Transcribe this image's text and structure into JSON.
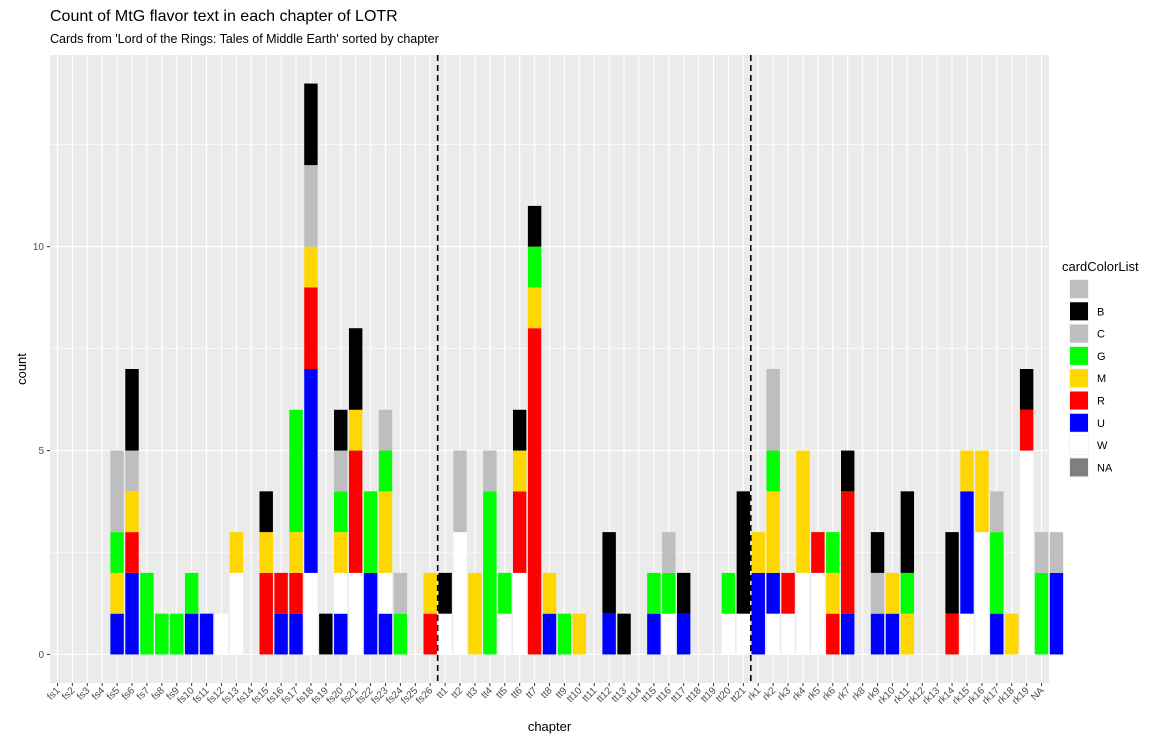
{
  "chart_data": {
    "type": "bar",
    "stacked": true,
    "title": "Count of MtG flavor text in each chapter of LOTR",
    "subtitle": "Cards from 'Lord of the Rings: Tales of Middle Earth' sorted by chapter",
    "xlabel": "chapter",
    "ylabel": "count",
    "ylim": [
      -0.7,
      14.7
    ],
    "yticks": [
      0,
      5,
      10
    ],
    "grid": true,
    "vlines": [
      "fs26|tt1",
      "tt21|rk1"
    ],
    "legend": {
      "title": "cardColorList",
      "position": "right",
      "entries": [
        {
          "label": "",
          "color": "#bebebe"
        },
        {
          "label": "B",
          "color": "#000000"
        },
        {
          "label": "C",
          "color": "#bebebe"
        },
        {
          "label": "G",
          "color": "#00ff00"
        },
        {
          "label": "M",
          "color": "#ffd700"
        },
        {
          "label": "R",
          "color": "#ff0000"
        },
        {
          "label": "U",
          "color": "#0000ff"
        },
        {
          "label": "W",
          "color": "#ffffff"
        },
        {
          "label": "NA",
          "color": "#7f7f7f"
        }
      ]
    },
    "categories": [
      "fs1",
      "fs2",
      "fs3",
      "fs4",
      "fs5",
      "fs6",
      "fs7",
      "fs8",
      "fs9",
      "fs10",
      "fs11",
      "fs12",
      "fs13",
      "fs14",
      "fs15",
      "fs16",
      "fs17",
      "fs18",
      "fs19",
      "fs20",
      "fs21",
      "fs22",
      "fs23",
      "fs24",
      "fs25",
      "fs26",
      "tt1",
      "tt2",
      "tt3",
      "tt4",
      "tt5",
      "tt6",
      "tt7",
      "tt8",
      "tt9",
      "tt10",
      "tt11",
      "tt12",
      "tt13",
      "tt14",
      "tt15",
      "tt16",
      "tt17",
      "tt18",
      "tt19",
      "tt20",
      "tt21",
      "rk1",
      "rk2",
      "rk3",
      "rk4",
      "rk5",
      "rk6",
      "rk7",
      "rk8",
      "rk9",
      "rk10",
      "rk11",
      "rk12",
      "rk13",
      "rk14",
      "rk15",
      "rk16",
      "rk17",
      "rk18",
      "rk19",
      "NA"
    ],
    "stacks": [
      [],
      [],
      [],
      [],
      [
        [
          "U",
          1
        ],
        [
          "M",
          1
        ],
        [
          "G",
          1
        ],
        [
          "C",
          2
        ]
      ],
      [
        [
          "U",
          2
        ],
        [
          "R",
          1
        ],
        [
          "M",
          1
        ],
        [
          "C",
          1
        ],
        [
          "B",
          2
        ]
      ],
      [
        [
          "G",
          2
        ]
      ],
      [
        [
          "G",
          1
        ]
      ],
      [
        [
          "G",
          1
        ]
      ],
      [
        [
          "U",
          1
        ],
        [
          "G",
          1
        ]
      ],
      [
        [
          "U",
          1
        ]
      ],
      [
        [
          "W",
          1
        ]
      ],
      [
        [
          "W",
          2
        ],
        [
          "M",
          1
        ]
      ],
      [],
      [
        [
          "R",
          2
        ],
        [
          "M",
          1
        ],
        [
          "B",
          1
        ]
      ],
      [
        [
          "U",
          1
        ],
        [
          "R",
          1
        ]
      ],
      [
        [
          "U",
          1
        ],
        [
          "R",
          1
        ],
        [
          "M",
          1
        ],
        [
          "G",
          3
        ]
      ],
      [
        [
          "W",
          2
        ],
        [
          "U",
          5
        ],
        [
          "R",
          2
        ],
        [
          "M",
          1
        ],
        [
          "C",
          2
        ],
        [
          "B",
          2
        ]
      ],
      [
        [
          "B",
          1
        ]
      ],
      [
        [
          "U",
          1
        ],
        [
          "W",
          1
        ],
        [
          "M",
          1
        ],
        [
          "G",
          1
        ],
        [
          "C",
          1
        ],
        [
          "B",
          1
        ]
      ],
      [
        [
          "W",
          2
        ],
        [
          "R",
          3
        ],
        [
          "M",
          1
        ],
        [
          "B",
          2
        ]
      ],
      [
        [
          "U",
          2
        ],
        [
          "G",
          2
        ]
      ],
      [
        [
          "U",
          1
        ],
        [
          "W",
          1
        ],
        [
          "M",
          2
        ],
        [
          "G",
          1
        ],
        [
          "C",
          1
        ]
      ],
      [
        [
          "G",
          1
        ],
        [
          "C",
          1
        ]
      ],
      [],
      [
        [
          "R",
          1
        ],
        [
          "M",
          1
        ]
      ],
      [
        [
          "W",
          1
        ],
        [
          "B",
          1
        ]
      ],
      [
        [
          "W",
          3
        ],
        [
          "C",
          2
        ]
      ],
      [
        [
          "M",
          2
        ]
      ],
      [
        [
          "G",
          4
        ],
        [
          "C",
          1
        ]
      ],
      [
        [
          "W",
          1
        ],
        [
          "G",
          1
        ]
      ],
      [
        [
          "W",
          2
        ],
        [
          "R",
          2
        ],
        [
          "M",
          1
        ],
        [
          "B",
          1
        ]
      ],
      [
        [
          "R",
          8
        ],
        [
          "M",
          1
        ],
        [
          "G",
          1
        ],
        [
          "B",
          1
        ]
      ],
      [
        [
          "U",
          1
        ],
        [
          "M",
          1
        ]
      ],
      [
        [
          "G",
          1
        ]
      ],
      [
        [
          "M",
          1
        ]
      ],
      [],
      [
        [
          "U",
          1
        ],
        [
          "B",
          2
        ]
      ],
      [
        [
          "B",
          1
        ]
      ],
      [],
      [
        [
          "U",
          1
        ],
        [
          "G",
          1
        ]
      ],
      [
        [
          "W",
          1
        ],
        [
          "G",
          1
        ],
        [
          "C",
          1
        ]
      ],
      [
        [
          "U",
          1
        ],
        [
          "B",
          1
        ]
      ],
      [],
      [],
      [
        [
          "W",
          1
        ],
        [
          "G",
          1
        ]
      ],
      [
        [
          "W",
          1
        ],
        [
          "B",
          3
        ]
      ],
      [
        [
          "U",
          2
        ],
        [
          "M",
          1
        ]
      ],
      [
        [
          "W",
          1
        ],
        [
          "U",
          1
        ],
        [
          "M",
          2
        ],
        [
          "G",
          1
        ],
        [
          "C",
          2
        ]
      ],
      [
        [
          "W",
          1
        ],
        [
          "R",
          1
        ]
      ],
      [
        [
          "W",
          2
        ],
        [
          "M",
          3
        ]
      ],
      [
        [
          "W",
          2
        ],
        [
          "R",
          1
        ]
      ],
      [
        [
          "R",
          1
        ],
        [
          "M",
          1
        ],
        [
          "G",
          1
        ]
      ],
      [
        [
          "U",
          1
        ],
        [
          "R",
          3
        ],
        [
          "B",
          1
        ]
      ],
      [],
      [
        [
          "U",
          1
        ],
        [
          "C",
          1
        ],
        [
          "B",
          1
        ]
      ],
      [
        [
          "U",
          1
        ],
        [
          "M",
          1
        ]
      ],
      [
        [
          "M",
          1
        ],
        [
          "G",
          1
        ],
        [
          "B",
          2
        ]
      ],
      [],
      [],
      [
        [
          "R",
          1
        ],
        [
          "B",
          2
        ]
      ],
      [
        [
          "W",
          1
        ],
        [
          "U",
          3
        ],
        [
          "M",
          1
        ]
      ],
      [
        [
          "W",
          3
        ],
        [
          "M",
          2
        ]
      ],
      [
        [
          "U",
          1
        ],
        [
          "G",
          2
        ],
        [
          "C",
          1
        ]
      ],
      [
        [
          "M",
          1
        ]
      ],
      [
        [
          "W",
          5
        ],
        [
          "R",
          1
        ],
        [
          "B",
          1
        ]
      ],
      [
        [
          "G",
          2
        ],
        [
          "C",
          1
        ]
      ],
      [
        [
          "U",
          2
        ],
        [
          "C",
          1
        ]
      ]
    ]
  }
}
